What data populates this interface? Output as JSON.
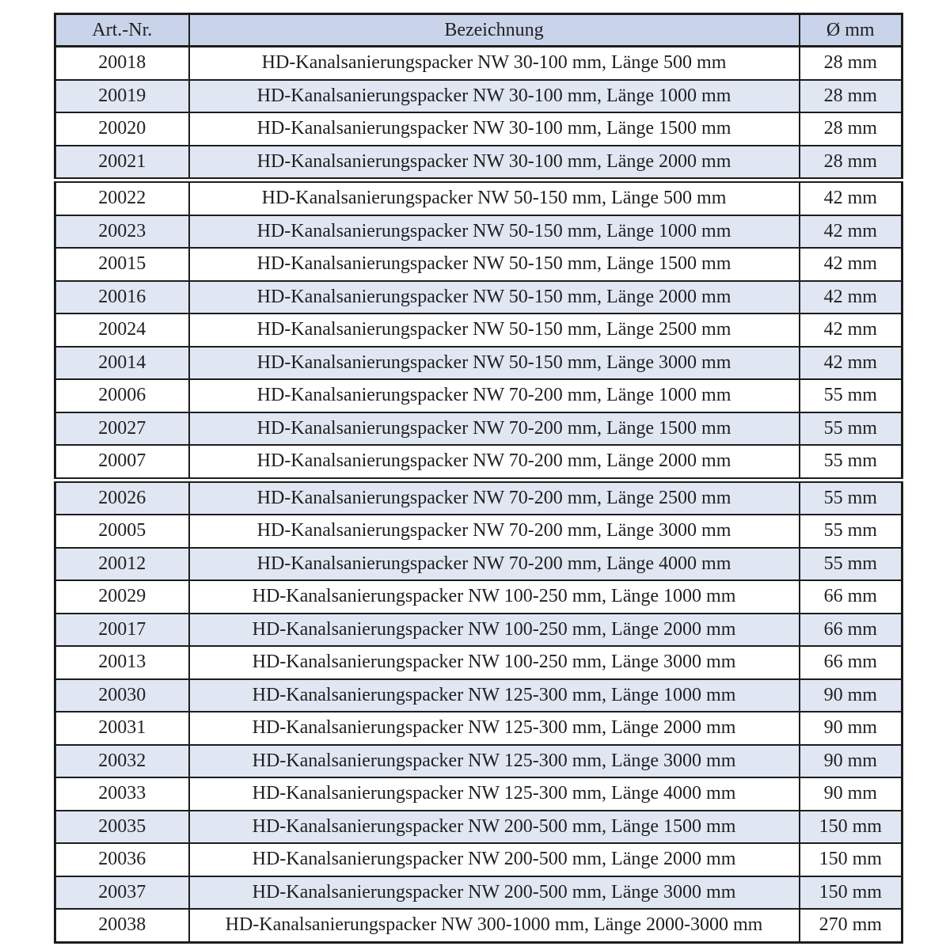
{
  "table": {
    "columns": [
      "Art.-Nr.",
      "Bezeichnung",
      "Ø mm"
    ],
    "rows": [
      {
        "art_nr": "20018",
        "bezeichnung": "HD-Kanalsanierungspacker NW 30-100 mm, Länge 500 mm",
        "durchmesser": "28 mm"
      },
      {
        "art_nr": "20019",
        "bezeichnung": "HD-Kanalsanierungspacker NW 30-100 mm, Länge 1000 mm",
        "durchmesser": "28 mm"
      },
      {
        "art_nr": "20020",
        "bezeichnung": "HD-Kanalsanierungspacker NW 30-100 mm, Länge 1500 mm",
        "durchmesser": "28 mm"
      },
      {
        "art_nr": "20021",
        "bezeichnung": "HD-Kanalsanierungspacker NW 30-100 mm, Länge 2000 mm",
        "durchmesser": "28 mm"
      },
      {
        "art_nr": "20022",
        "bezeichnung": "HD-Kanalsanierungspacker NW 50-150 mm, Länge 500 mm",
        "durchmesser": "42 mm",
        "group_break": true
      },
      {
        "art_nr": "20023",
        "bezeichnung": "HD-Kanalsanierungspacker NW 50-150 mm, Länge 1000 mm",
        "durchmesser": "42 mm"
      },
      {
        "art_nr": "20015",
        "bezeichnung": "HD-Kanalsanierungspacker NW 50-150 mm, Länge 1500 mm",
        "durchmesser": "42 mm"
      },
      {
        "art_nr": "20016",
        "bezeichnung": "HD-Kanalsanierungspacker NW 50-150 mm, Länge 2000 mm",
        "durchmesser": "42 mm"
      },
      {
        "art_nr": "20024",
        "bezeichnung": "HD-Kanalsanierungspacker NW 50-150 mm, Länge 2500 mm",
        "durchmesser": "42 mm"
      },
      {
        "art_nr": "20014",
        "bezeichnung": "HD-Kanalsanierungspacker NW 50-150 mm, Länge 3000 mm",
        "durchmesser": "42 mm"
      },
      {
        "art_nr": "20006",
        "bezeichnung": "HD-Kanalsanierungspacker NW 70-200 mm, Länge 1000 mm",
        "durchmesser": "55 mm"
      },
      {
        "art_nr": "20027",
        "bezeichnung": "HD-Kanalsanierungspacker NW 70-200 mm, Länge 1500 mm",
        "durchmesser": "55 mm"
      },
      {
        "art_nr": "20007",
        "bezeichnung": "HD-Kanalsanierungspacker NW 70-200 mm, Länge 2000 mm",
        "durchmesser": "55 mm"
      },
      {
        "art_nr": "20026",
        "bezeichnung": "HD-Kanalsanierungspacker NW 70-200 mm, Länge 2500 mm",
        "durchmesser": "55 mm",
        "group_break": true
      },
      {
        "art_nr": "20005",
        "bezeichnung": "HD-Kanalsanierungspacker NW 70-200 mm, Länge 3000 mm",
        "durchmesser": "55 mm"
      },
      {
        "art_nr": "20012",
        "bezeichnung": "HD-Kanalsanierungspacker NW 70-200 mm, Länge 4000 mm",
        "durchmesser": "55 mm"
      },
      {
        "art_nr": "20029",
        "bezeichnung": "HD-Kanalsanierungspacker NW 100-250 mm, Länge 1000 mm",
        "durchmesser": "66 mm"
      },
      {
        "art_nr": "20017",
        "bezeichnung": "HD-Kanalsanierungspacker NW 100-250 mm, Länge 2000 mm",
        "durchmesser": "66 mm"
      },
      {
        "art_nr": "20013",
        "bezeichnung": "HD-Kanalsanierungspacker NW 100-250 mm, Länge 3000 mm",
        "durchmesser": "66 mm"
      },
      {
        "art_nr": "20030",
        "bezeichnung": "HD-Kanalsanierungspacker NW 125-300 mm, Länge 1000 mm",
        "durchmesser": "90 mm"
      },
      {
        "art_nr": "20031",
        "bezeichnung": "HD-Kanalsanierungspacker NW 125-300 mm, Länge 2000 mm",
        "durchmesser": "90 mm"
      },
      {
        "art_nr": "20032",
        "bezeichnung": "HD-Kanalsanierungspacker NW 125-300 mm, Länge 3000 mm",
        "durchmesser": "90 mm"
      },
      {
        "art_nr": "20033",
        "bezeichnung": "HD-Kanalsanierungspacker NW 125-300 mm, Länge 4000 mm",
        "durchmesser": "90 mm"
      },
      {
        "art_nr": "20035",
        "bezeichnung": "HD-Kanalsanierungspacker NW 200-500 mm, Länge 1500 mm",
        "durchmesser": "150 mm"
      },
      {
        "art_nr": "20036",
        "bezeichnung": "HD-Kanalsanierungspacker NW 200-500 mm, Länge 2000 mm",
        "durchmesser": "150 mm"
      },
      {
        "art_nr": "20037",
        "bezeichnung": "HD-Kanalsanierungspacker NW 200-500 mm, Länge 3000 mm",
        "durchmesser": "150 mm"
      },
      {
        "art_nr": "20038",
        "bezeichnung": "HD-Kanalsanierungspacker NW 300-1000 mm, Länge 2000-3000 mm",
        "durchmesser": "270 mm"
      }
    ]
  },
  "colors": {
    "header_bg": "#c9d4ea",
    "stripe_bg": "#e0e7f3",
    "border": "#1d1d1d",
    "text": "#1f1f1f"
  }
}
